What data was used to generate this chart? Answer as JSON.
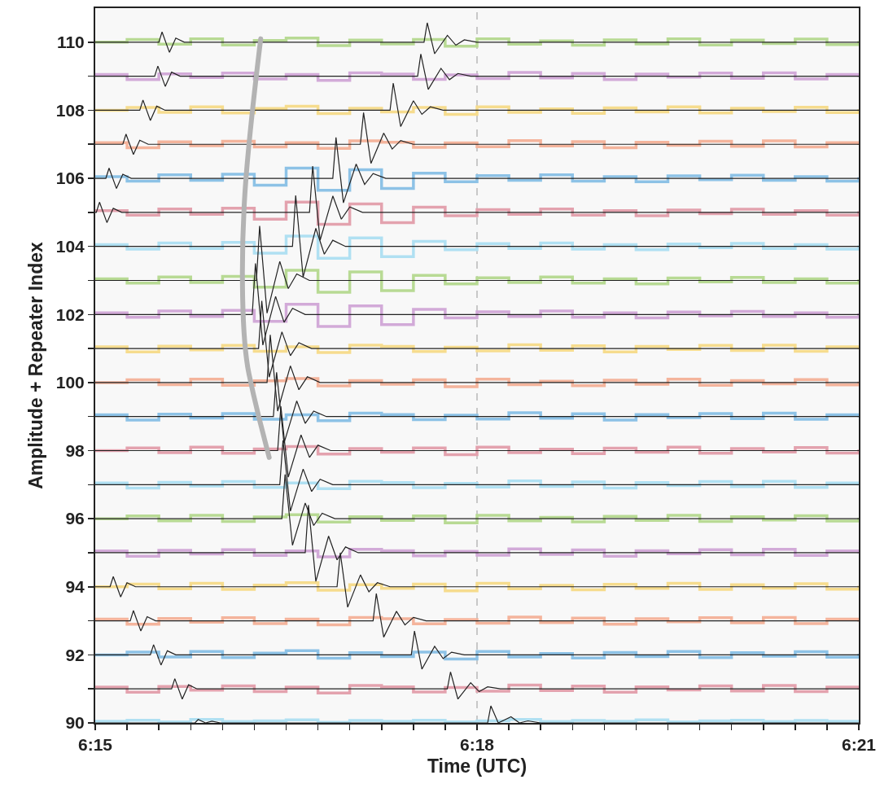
{
  "chart_data": {
    "type": "line",
    "xlabel": "Time (UTC)",
    "ylabel": "Amplitude + Repeater Index",
    "xlim": [
      6.25,
      6.35
    ],
    "ylim": [
      90,
      111
    ],
    "xticks": [
      {
        "value": 6.25,
        "label": "6:15"
      },
      {
        "value": 6.25417,
        "label": null
      },
      {
        "value": 6.25833,
        "label": null
      },
      {
        "value": 6.2625,
        "label": null
      },
      {
        "value": 6.26667,
        "label": null
      },
      {
        "value": 6.27083,
        "label": null
      },
      {
        "value": 6.275,
        "label": null
      },
      {
        "value": 6.27917,
        "label": null
      },
      {
        "value": 6.28333,
        "label": null
      },
      {
        "value": 6.2875,
        "label": null
      },
      {
        "value": 6.29167,
        "label": null
      },
      {
        "value": 6.29583,
        "label": null
      },
      {
        "value": 6.3,
        "label": "6:18"
      },
      {
        "value": 6.30417,
        "label": null
      },
      {
        "value": 6.30833,
        "label": null
      },
      {
        "value": 6.3125,
        "label": null
      },
      {
        "value": 6.31667,
        "label": null
      },
      {
        "value": 6.32083,
        "label": null
      },
      {
        "value": 6.325,
        "label": null
      },
      {
        "value": 6.32917,
        "label": null
      },
      {
        "value": 6.33333,
        "label": null
      },
      {
        "value": 6.3375,
        "label": null
      },
      {
        "value": 6.34167,
        "label": null
      },
      {
        "value": 6.34583,
        "label": null
      },
      {
        "value": 6.35,
        "label": "6:21"
      }
    ],
    "yticks": [
      90,
      {
        "value": 91,
        "label": null
      },
      92,
      {
        "value": 93,
        "label": null
      },
      94,
      {
        "value": 95,
        "label": null
      },
      96,
      {
        "value": 97,
        "label": null
      },
      98,
      {
        "value": 99,
        "label": null
      },
      100,
      {
        "value": 101,
        "label": null
      },
      102,
      {
        "value": 103,
        "label": null
      },
      104,
      {
        "value": 105,
        "label": null
      },
      106,
      {
        "value": 107,
        "label": null
      },
      108,
      {
        "value": 109,
        "label": null
      },
      110
    ],
    "grid": false,
    "ref_lines": [
      {
        "axis": "x",
        "value": 6.3,
        "color": "#c8c8c8",
        "line_style": "dashed"
      }
    ],
    "x": [
      6.25,
      6.25417,
      6.25833,
      6.2625,
      6.26667,
      6.27083,
      6.275,
      6.27917,
      6.28333,
      6.2875,
      6.29167,
      6.29583,
      6.3,
      6.30417,
      6.30833,
      6.3125,
      6.31667,
      6.32083,
      6.325,
      6.32917,
      6.33333,
      6.3375,
      6.34167,
      6.34583,
      6.35
    ],
    "series": [
      {
        "type": "step",
        "color": "#b8da94",
        "values": [
          110,
          110.08,
          109.94,
          110.1,
          109.92,
          110.05,
          110.12,
          109.9,
          110.06,
          109.95,
          110.08,
          109.88,
          110.1,
          109.94,
          110.04,
          109.91,
          110.07,
          109.95,
          110.1,
          109.92,
          110.06,
          109.96,
          110.09,
          109.93,
          110.03
        ]
      },
      {
        "type": "step",
        "color": "#d2aad8",
        "values": [
          109.05,
          108.9,
          109.07,
          108.96,
          109.09,
          108.92,
          109.05,
          108.88,
          109.1,
          109.06,
          108.91,
          109.04,
          108.93,
          109.11,
          108.95,
          109.08,
          108.9,
          109.06,
          108.97,
          109.09,
          108.94,
          109.1,
          108.92,
          109.05,
          108.98
        ]
      },
      {
        "type": "step",
        "color": "#f6dc8e",
        "values": [
          108,
          108.08,
          107.94,
          108.1,
          107.92,
          108.05,
          108.12,
          107.9,
          108.06,
          107.95,
          108.08,
          107.88,
          108.1,
          107.94,
          108.04,
          107.91,
          108.07,
          107.95,
          108.1,
          107.92,
          108.06,
          107.96,
          108.09,
          107.93,
          108.03
        ]
      },
      {
        "type": "step",
        "color": "#f4b49c",
        "values": [
          107.05,
          106.9,
          107.07,
          106.96,
          107.09,
          106.92,
          107.05,
          106.88,
          107.1,
          107.06,
          106.91,
          107.04,
          106.93,
          107.11,
          106.95,
          107.08,
          106.9,
          107.06,
          106.97,
          107.09,
          106.94,
          107.1,
          106.92,
          107.05,
          106.98
        ]
      },
      {
        "type": "step",
        "color": "#8dc2e6",
        "values": [
          106.05,
          105.92,
          106.1,
          105.94,
          106.12,
          105.8,
          106.3,
          105.65,
          106.25,
          105.7,
          106.15,
          105.9,
          106.08,
          105.94,
          106.1,
          105.92,
          106.05,
          105.9,
          106.07,
          105.96,
          106.09,
          105.94,
          106.05,
          105.92,
          106.03
        ]
      },
      {
        "type": "step",
        "color": "#e3a2ae",
        "values": [
          105.05,
          104.92,
          105.1,
          104.94,
          105.12,
          104.8,
          105.3,
          104.65,
          105.25,
          104.7,
          105.15,
          104.9,
          105.08,
          104.94,
          105.1,
          104.92,
          105.05,
          104.9,
          105.07,
          104.96,
          105.09,
          104.94,
          105.05,
          104.92,
          105.03
        ]
      },
      {
        "type": "step",
        "color": "#b0e0f2",
        "values": [
          104.05,
          103.92,
          104.1,
          103.94,
          104.12,
          103.8,
          104.3,
          103.65,
          104.25,
          103.7,
          104.15,
          103.9,
          104.08,
          103.94,
          104.1,
          103.92,
          104.05,
          103.9,
          104.07,
          103.96,
          104.09,
          103.94,
          104.05,
          103.92,
          104.03
        ]
      },
      {
        "type": "step",
        "color": "#b8da94",
        "values": [
          103.05,
          102.92,
          103.1,
          102.94,
          103.12,
          102.8,
          103.3,
          102.65,
          103.25,
          102.7,
          103.15,
          102.9,
          103.08,
          102.94,
          103.1,
          102.92,
          103.05,
          102.9,
          103.07,
          102.96,
          103.09,
          102.94,
          103.05,
          102.92,
          103.03
        ]
      },
      {
        "type": "step",
        "color": "#d2aad8",
        "values": [
          102.05,
          101.92,
          102.1,
          101.94,
          102.12,
          101.8,
          102.3,
          101.65,
          102.25,
          101.7,
          102.15,
          101.9,
          102.08,
          101.94,
          102.1,
          101.92,
          102.05,
          101.9,
          102.07,
          101.96,
          102.09,
          101.94,
          102.05,
          101.92,
          102.03
        ]
      },
      {
        "type": "step",
        "color": "#f6dc8e",
        "values": [
          101.05,
          100.9,
          101.07,
          100.96,
          101.09,
          100.92,
          101.05,
          100.88,
          101.1,
          101.06,
          100.91,
          101.04,
          100.93,
          101.11,
          100.95,
          101.08,
          100.9,
          101.06,
          100.97,
          101.09,
          100.94,
          101.1,
          100.92,
          101.05,
          100.98
        ]
      },
      {
        "type": "step",
        "color": "#f4b49c",
        "values": [
          100,
          100.08,
          99.94,
          100.1,
          99.92,
          100.05,
          100.12,
          99.9,
          100.06,
          99.95,
          100.08,
          99.88,
          100.1,
          99.94,
          100.04,
          99.91,
          100.07,
          99.95,
          100.1,
          99.92,
          100.06,
          99.96,
          100.09,
          99.93,
          100.03
        ]
      },
      {
        "type": "step",
        "color": "#8dc2e6",
        "values": [
          99.05,
          98.9,
          99.07,
          98.96,
          99.09,
          98.92,
          99.05,
          98.88,
          99.1,
          99.06,
          98.91,
          99.04,
          98.93,
          99.11,
          98.95,
          99.08,
          98.9,
          99.06,
          98.97,
          99.09,
          98.94,
          99.1,
          98.92,
          99.05,
          98.98
        ]
      },
      {
        "type": "step",
        "color": "#e3a2ae",
        "values": [
          98,
          98.08,
          97.94,
          98.1,
          97.92,
          98.05,
          98.12,
          97.9,
          98.06,
          97.95,
          98.08,
          97.88,
          98.1,
          97.94,
          98.04,
          97.91,
          98.07,
          97.95,
          98.1,
          97.92,
          98.06,
          97.96,
          98.09,
          97.93,
          98.03
        ]
      },
      {
        "type": "step",
        "color": "#b0e0f2",
        "values": [
          97.05,
          96.9,
          97.07,
          96.96,
          97.09,
          96.92,
          97.05,
          96.88,
          97.1,
          97.06,
          96.91,
          97.04,
          96.93,
          97.11,
          96.95,
          97.08,
          96.9,
          97.06,
          96.97,
          97.09,
          96.94,
          97.1,
          96.92,
          97.05,
          96.98
        ]
      },
      {
        "type": "step",
        "color": "#b8da94",
        "values": [
          96,
          96.08,
          95.94,
          96.1,
          95.92,
          96.05,
          96.12,
          95.9,
          96.06,
          95.95,
          96.08,
          95.88,
          96.1,
          95.94,
          96.04,
          95.91,
          96.07,
          95.95,
          96.1,
          95.92,
          96.06,
          95.96,
          96.09,
          95.93,
          96.03
        ]
      },
      {
        "type": "step",
        "color": "#d2aad8",
        "values": [
          95.05,
          94.9,
          95.07,
          94.96,
          95.09,
          94.92,
          95.05,
          94.88,
          95.1,
          95.06,
          94.91,
          95.04,
          94.93,
          95.11,
          94.95,
          95.08,
          94.9,
          95.06,
          94.97,
          95.09,
          94.94,
          95.1,
          94.92,
          95.05,
          94.98
        ]
      },
      {
        "type": "step",
        "color": "#f6dc8e",
        "values": [
          94,
          94.08,
          93.94,
          94.1,
          93.92,
          94.05,
          94.12,
          93.9,
          94.06,
          93.95,
          94.08,
          93.88,
          94.1,
          93.94,
          94.04,
          93.91,
          94.07,
          93.95,
          94.1,
          93.92,
          94.06,
          93.96,
          94.09,
          93.93,
          94.03
        ]
      },
      {
        "type": "step",
        "color": "#f4b49c",
        "values": [
          93.05,
          92.9,
          93.07,
          92.96,
          93.09,
          92.92,
          93.05,
          92.88,
          93.1,
          93.06,
          92.91,
          93.04,
          92.93,
          93.11,
          92.95,
          93.08,
          92.9,
          93.06,
          92.97,
          93.09,
          92.94,
          93.1,
          92.92,
          93.05,
          92.98
        ]
      },
      {
        "type": "step",
        "color": "#8dc2e6",
        "values": [
          92,
          92.08,
          91.94,
          92.1,
          91.92,
          92.05,
          92.12,
          91.9,
          92.06,
          91.95,
          92.08,
          91.88,
          92.1,
          91.94,
          92.04,
          91.91,
          92.07,
          91.95,
          92.1,
          91.92,
          92.06,
          91.96,
          92.09,
          91.93,
          92.03
        ]
      },
      {
        "type": "step",
        "color": "#e3a2ae",
        "values": [
          91.05,
          90.9,
          91.07,
          90.96,
          91.09,
          90.92,
          91.05,
          90.88,
          91.1,
          91.06,
          90.91,
          91.04,
          90.93,
          91.11,
          90.95,
          91.08,
          90.9,
          91.06,
          90.97,
          91.09,
          90.94,
          91.1,
          90.92,
          91.05,
          90.98
        ]
      },
      {
        "type": "step",
        "color": "#b0e0f2",
        "values": [
          90.05,
          90.08,
          90.03,
          90.1,
          90.04,
          90.06,
          90.09,
          90.02,
          90.07,
          90.05,
          90.08,
          90.03,
          90.06,
          90.1,
          90.04,
          90.07,
          90.05,
          90.09,
          90.03,
          90.06,
          90.08,
          90.04,
          90.07,
          90.05,
          90.02
        ]
      },
      {
        "type": "line",
        "color": "#222222",
        "x": [
          6.25,
          6.25833,
          6.25875,
          6.25972,
          6.26055,
          6.26166,
          6.29306,
          6.29348,
          6.29445,
          6.29612,
          6.29723,
          6.29834,
          6.3,
          6.35
        ],
        "values": [
          110,
          110,
          110.3,
          109.7,
          110.12,
          110,
          110,
          110.57,
          109.66,
          110.2,
          109.91,
          110.07,
          110,
          110
        ]
      },
      {
        "type": "line",
        "color": "#222222",
        "x": [
          6.25,
          6.25778,
          6.2582,
          6.25917,
          6.26,
          6.26111,
          6.29222,
          6.29264,
          6.29361,
          6.29528,
          6.29639,
          6.2975,
          6.29916,
          6.35
        ],
        "values": [
          109,
          109,
          109.3,
          108.7,
          109.12,
          109,
          109,
          109.65,
          108.61,
          109.23,
          108.9,
          109.08,
          109,
          109
        ]
      },
      {
        "type": "line",
        "color": "#222222",
        "x": [
          6.25,
          6.25583,
          6.25625,
          6.25722,
          6.25805,
          6.25916,
          6.28861,
          6.28903,
          6.29,
          6.29167,
          6.29278,
          6.29389,
          6.29555,
          6.35
        ],
        "values": [
          108,
          108,
          108.3,
          107.7,
          108.12,
          108,
          108,
          108.8,
          107.52,
          108.28,
          107.88,
          108.1,
          108,
          108
        ]
      },
      {
        "type": "line",
        "color": "#222222",
        "x": [
          6.25,
          6.25361,
          6.25403,
          6.255,
          6.25583,
          6.25694,
          6.28472,
          6.28514,
          6.28611,
          6.28778,
          6.28889,
          6.29,
          6.29166,
          6.35
        ],
        "values": [
          107,
          107,
          107.3,
          106.7,
          107.12,
          107,
          107,
          107.93,
          106.44,
          107.33,
          106.86,
          107.11,
          107,
          107
        ]
      },
      {
        "type": "line",
        "color": "#222222",
        "x": [
          6.25,
          6.25139,
          6.25181,
          6.25278,
          6.25361,
          6.25472,
          6.28111,
          6.28153,
          6.2825,
          6.28417,
          6.28528,
          6.28639,
          6.28805,
          6.35
        ],
        "values": [
          106,
          106,
          106.3,
          105.7,
          106.12,
          106,
          106,
          107.2,
          105.28,
          106.42,
          105.82,
          106.14,
          106,
          106
        ]
      },
      {
        "type": "line",
        "color": "#222222",
        "x": [
          6.25,
          6.25014,
          6.25056,
          6.25153,
          6.25236,
          6.25347,
          6.27806,
          6.27848,
          6.27945,
          6.28112,
          6.28223,
          6.28334,
          6.285,
          6.35
        ],
        "values": [
          105,
          105,
          105.3,
          104.7,
          105.12,
          105,
          105,
          106.36,
          104.18,
          105.48,
          104.8,
          105.16,
          105,
          105
        ]
      },
      {
        "type": "line",
        "color": "#222222",
        "x": [
          6.25,
          6.27583,
          6.27625,
          6.27722,
          6.27889,
          6.28,
          6.28111,
          6.28277,
          6.35
        ],
        "values": [
          104,
          104,
          105.5,
          103.1,
          104.53,
          103.77,
          104.18,
          104,
          104
        ]
      },
      {
        "type": "line",
        "color": "#222222",
        "x": [
          6.25,
          6.27111,
          6.27153,
          6.2725,
          6.27417,
          6.27528,
          6.27639,
          6.27805,
          6.35
        ],
        "values": [
          103,
          103,
          104.6,
          102.04,
          103.56,
          102.76,
          103.19,
          103,
          103
        ]
      },
      {
        "type": "line",
        "color": "#222222",
        "x": [
          6.25,
          6.27056,
          6.27098,
          6.27195,
          6.27362,
          6.27473,
          6.27584,
          6.2775,
          6.35
        ],
        "values": [
          102,
          102,
          103.5,
          101.1,
          102.53,
          101.77,
          102.18,
          102,
          102
        ]
      },
      {
        "type": "line",
        "color": "#222222",
        "x": [
          6.25,
          6.27139,
          6.27181,
          6.27278,
          6.27445,
          6.27556,
          6.27667,
          6.27833,
          6.35
        ],
        "values": [
          101,
          101,
          102.4,
          100.16,
          101.49,
          100.79,
          101.17,
          101,
          101
        ]
      },
      {
        "type": "line",
        "color": "#222222",
        "x": [
          6.25,
          6.2725,
          6.27292,
          6.27389,
          6.27556,
          6.27667,
          6.27778,
          6.27944,
          6.35
        ],
        "values": [
          100,
          100,
          101.4,
          99.16,
          100.49,
          99.79,
          100.17,
          100,
          100
        ]
      },
      {
        "type": "line",
        "color": "#222222",
        "x": [
          6.25,
          6.27333,
          6.27375,
          6.27472,
          6.27639,
          6.2775,
          6.27861,
          6.28027,
          6.35
        ],
        "values": [
          99,
          99,
          100.3,
          98.22,
          99.46,
          98.8,
          99.16,
          99,
          99
        ]
      },
      {
        "type": "line",
        "color": "#222222",
        "x": [
          6.25,
          6.27389,
          6.27431,
          6.27528,
          6.27695,
          6.27806,
          6.27917,
          6.28083,
          6.35
        ],
        "values": [
          98,
          98,
          99.3,
          97.22,
          98.46,
          97.8,
          98.16,
          98,
          98
        ]
      },
      {
        "type": "line",
        "color": "#222222",
        "x": [
          6.25,
          6.27417,
          6.27459,
          6.27556,
          6.27723,
          6.27834,
          6.27945,
          6.28111,
          6.35
        ],
        "values": [
          97,
          97,
          98.3,
          96.22,
          97.46,
          96.8,
          97.16,
          97,
          97
        ]
      },
      {
        "type": "line",
        "color": "#222222",
        "x": [
          6.25,
          6.27444,
          6.27486,
          6.27583,
          6.2775,
          6.27861,
          6.27972,
          6.28138,
          6.35
        ],
        "values": [
          96,
          96,
          97.3,
          95.22,
          96.46,
          95.8,
          96.16,
          96,
          96
        ]
      },
      {
        "type": "line",
        "color": "#222222",
        "x": [
          6.25,
          6.2775,
          6.27792,
          6.27889,
          6.28056,
          6.28167,
          6.28278,
          6.28444,
          6.35
        ],
        "values": [
          95,
          95,
          96.4,
          94.16,
          95.49,
          94.79,
          95.17,
          95,
          95
        ]
      },
      {
        "type": "line",
        "color": "#222222",
        "x": [
          6.25,
          6.25194,
          6.25236,
          6.25333,
          6.25416,
          6.25527,
          6.28167,
          6.28209,
          6.28306,
          6.28473,
          6.28584,
          6.28695,
          6.28861,
          6.35
        ],
        "values": [
          94,
          94,
          94.3,
          93.7,
          94.12,
          94,
          94,
          95,
          93.4,
          94.35,
          93.85,
          94.12,
          94,
          94
        ]
      },
      {
        "type": "line",
        "color": "#222222",
        "x": [
          6.25,
          6.25458,
          6.255,
          6.25597,
          6.2568,
          6.25791,
          6.28639,
          6.28681,
          6.28778,
          6.28945,
          6.29056,
          6.29167,
          6.29333,
          6.35
        ],
        "values": [
          93,
          93,
          93.3,
          92.7,
          93.12,
          93,
          93,
          93.8,
          92.52,
          93.28,
          92.88,
          93.1,
          93,
          93
        ]
      },
      {
        "type": "line",
        "color": "#222222",
        "x": [
          6.25,
          6.25722,
          6.25764,
          6.25861,
          6.25944,
          6.26055,
          6.29139,
          6.29181,
          6.29278,
          6.29445,
          6.29556,
          6.29667,
          6.29833,
          6.35
        ],
        "values": [
          92,
          92,
          92.3,
          91.7,
          92.12,
          92,
          92,
          92.7,
          91.58,
          92.25,
          91.89,
          92.08,
          92,
          92
        ]
      },
      {
        "type": "line",
        "color": "#222222",
        "x": [
          6.25,
          6.26,
          6.26042,
          6.26139,
          6.26222,
          6.26333,
          6.29611,
          6.29653,
          6.2975,
          6.29917,
          6.30028,
          6.30139,
          6.30305,
          6.35
        ],
        "values": [
          91,
          91,
          91.3,
          90.7,
          91.12,
          91,
          91,
          91.5,
          90.7,
          91.18,
          90.92,
          91.06,
          91,
          91
        ]
      },
      {
        "type": "line",
        "color": "#222222",
        "x": [
          6.25,
          6.26306,
          6.26348,
          6.26445,
          6.26528,
          6.26639,
          6.30139,
          6.30181,
          6.30278,
          6.30445,
          6.30556,
          6.30667,
          6.30833,
          6.35
        ],
        "values": [
          90,
          90,
          90.1,
          90,
          90.05,
          90,
          90,
          90.5,
          90,
          90.18,
          90,
          90.06,
          90,
          90
        ]
      }
    ]
  }
}
